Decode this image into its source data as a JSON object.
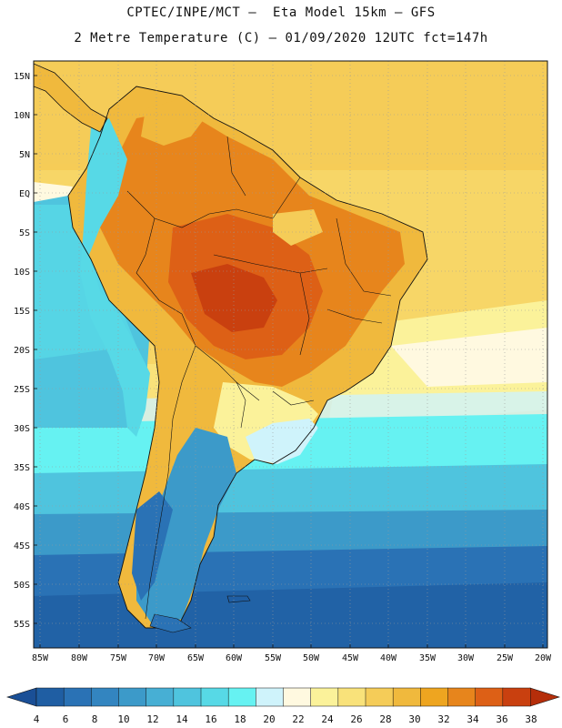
{
  "header": {
    "line1": "CPTEC/INPE/MCT –  Eta Model 15km – GFS",
    "line2": "2 Metre Temperature (C) – 01/09/2020 12UTC fct=147h"
  },
  "map": {
    "lat_labels": [
      "15N",
      "10N",
      "5N",
      "EQ",
      "5S",
      "10S",
      "15S",
      "20S",
      "25S",
      "30S",
      "35S",
      "40S",
      "45S",
      "50S",
      "55S"
    ],
    "lon_labels": [
      "85W",
      "80W",
      "75W",
      "70W",
      "65W",
      "60W",
      "55W",
      "50W",
      "45W",
      "40W",
      "35W",
      "30W",
      "25W",
      "20W"
    ]
  },
  "legend": {
    "labels": [
      "4",
      "6",
      "8",
      "10",
      "12",
      "14",
      "16",
      "18",
      "20",
      "22",
      "24",
      "26",
      "28",
      "30",
      "32",
      "34",
      "36",
      "38"
    ],
    "colors": [
      "#1f5ea3",
      "#2a72b5",
      "#3385c0",
      "#3c9ac9",
      "#47afd4",
      "#4fc4de",
      "#57d9e6",
      "#66f2f2",
      "#cff3fb",
      "#fff9e0",
      "#fbf29a",
      "#f9e27a",
      "#f5cc58",
      "#f0b93d",
      "#eea520",
      "#e7851c",
      "#dd6016",
      "#c9400f"
    ],
    "left_arrow_color": "#1a4f96",
    "right_arrow_color": "#b52e0a"
  }
}
